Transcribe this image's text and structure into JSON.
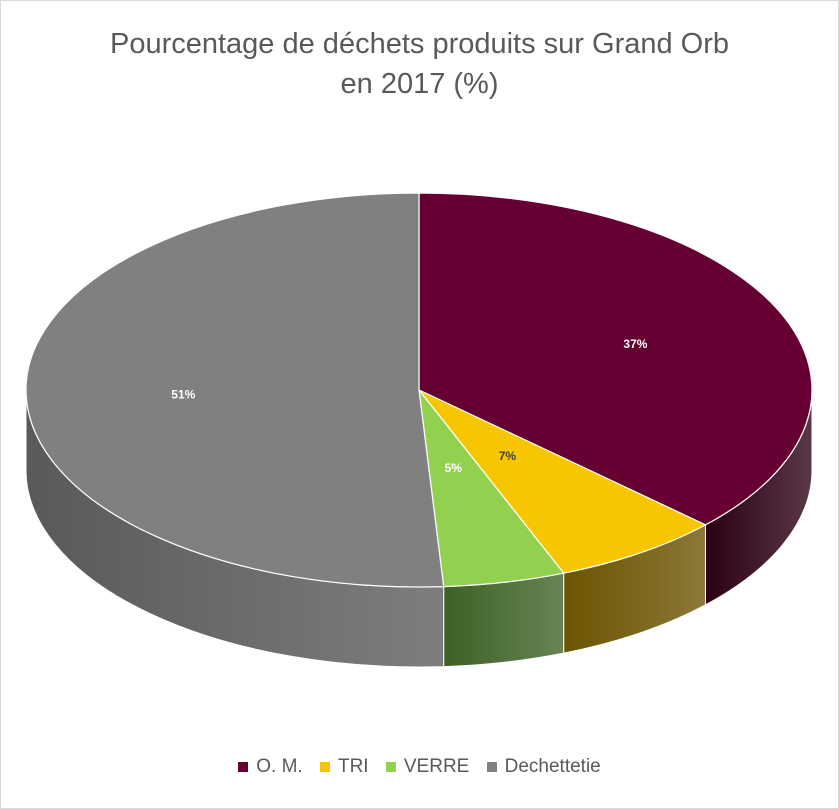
{
  "chart_data": {
    "type": "pie",
    "title_line1": "Pourcentage de déchets produits sur Grand Orb",
    "title_line2": "en 2017 (%)",
    "unit": "%",
    "legend_position": "bottom",
    "style": "3d",
    "slices": [
      {
        "name": "O. M.",
        "value": 37,
        "label": "37%",
        "color": "#660033",
        "side_color": "#2a0014",
        "label_color": "#ffffff"
      },
      {
        "name": "TRI",
        "value": 7,
        "label": "7%",
        "color": "#f7c600",
        "side_color": "#6b5300",
        "label_color": "#404040"
      },
      {
        "name": "VERRE",
        "value": 5,
        "label": "5%",
        "color": "#92d050",
        "side_color": "#3d6125",
        "label_color": "#ffffff"
      },
      {
        "name": "Dechettetie",
        "value": 51,
        "label": "51%",
        "color": "#808080",
        "side_color": "#595959",
        "label_color": "#ffffff"
      }
    ]
  }
}
